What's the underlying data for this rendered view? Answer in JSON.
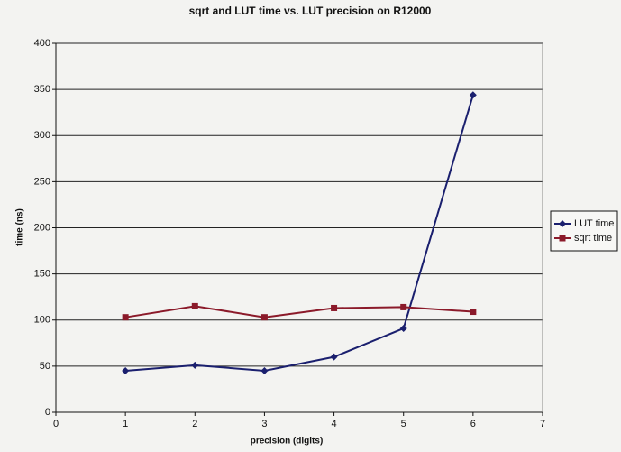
{
  "chart_data": {
    "type": "line",
    "title": "sqrt and LUT time vs. LUT precision on R12000",
    "x_label": "precision (digits)",
    "y_label": "time (ns)",
    "x": [
      1,
      2,
      3,
      4,
      5,
      6
    ],
    "series": [
      {
        "name": "LUT time",
        "color": "#1a1f6e",
        "marker": "diamond",
        "values": [
          45,
          51,
          45,
          60,
          91,
          344
        ]
      },
      {
        "name": "sqrt time",
        "color": "#8b1a2a",
        "marker": "square",
        "values": [
          103,
          115,
          103,
          113,
          114,
          109
        ]
      }
    ],
    "xlim": [
      0,
      7
    ],
    "xticks": [
      0,
      1,
      2,
      3,
      4,
      5,
      6,
      7
    ],
    "ylim": [
      0,
      400
    ],
    "yticks": [
      0,
      50,
      100,
      150,
      200,
      250,
      300,
      350,
      400
    ],
    "grid": true,
    "legend": "right"
  }
}
